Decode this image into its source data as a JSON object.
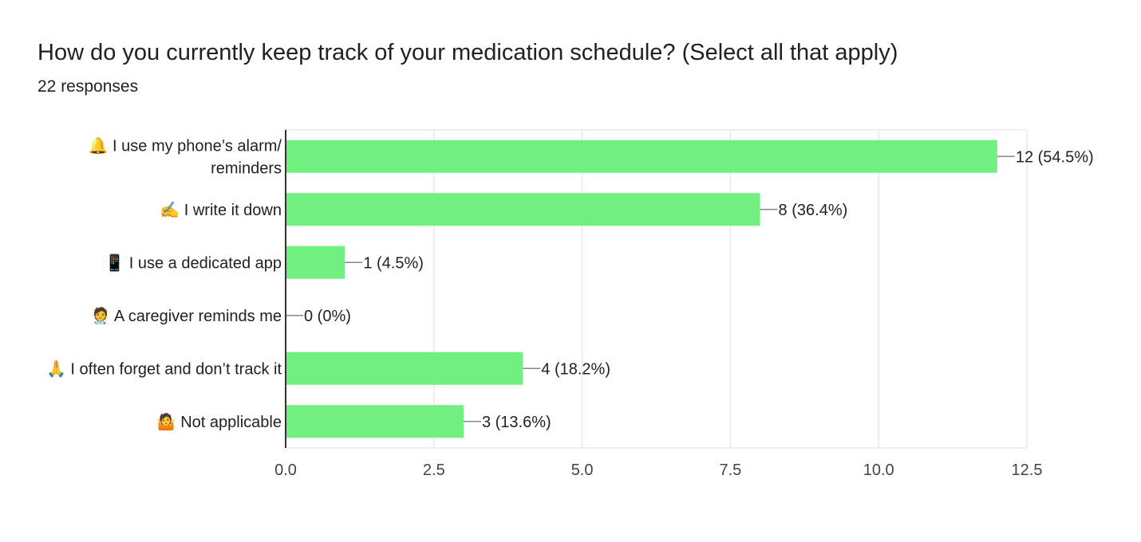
{
  "chart_data": {
    "type": "bar",
    "orientation": "horizontal",
    "title": "How do you currently keep track of your medication schedule? (Select all that apply)",
    "subtitle": "22 responses",
    "categories": [
      [
        "🔔 I use my phone’s alarm/",
        "reminders"
      ],
      [
        "✍️ I write it down"
      ],
      [
        "📱 I use a dedicated app"
      ],
      [
        "🧑‍⚕️ A caregiver reminds me"
      ],
      [
        "🙏 I often forget and don’t track it"
      ],
      [
        "🤷 Not applicable"
      ]
    ],
    "values": [
      12,
      8,
      1,
      0,
      4,
      3
    ],
    "data_labels": [
      "12 (54.5%)",
      "8 (36.4%)",
      "1 (4.5%)",
      "0 (0%)",
      "4 (18.2%)",
      "3 (13.6%)"
    ],
    "xlim": [
      0,
      12.5
    ],
    "x_ticks": [
      "0.0",
      "2.5",
      "5.0",
      "7.5",
      "10.0",
      "12.5"
    ],
    "x_tick_values": [
      0,
      2.5,
      5,
      7.5,
      10,
      12.5
    ],
    "bar_color": "#72f07f",
    "grid": true,
    "legend": "none"
  }
}
